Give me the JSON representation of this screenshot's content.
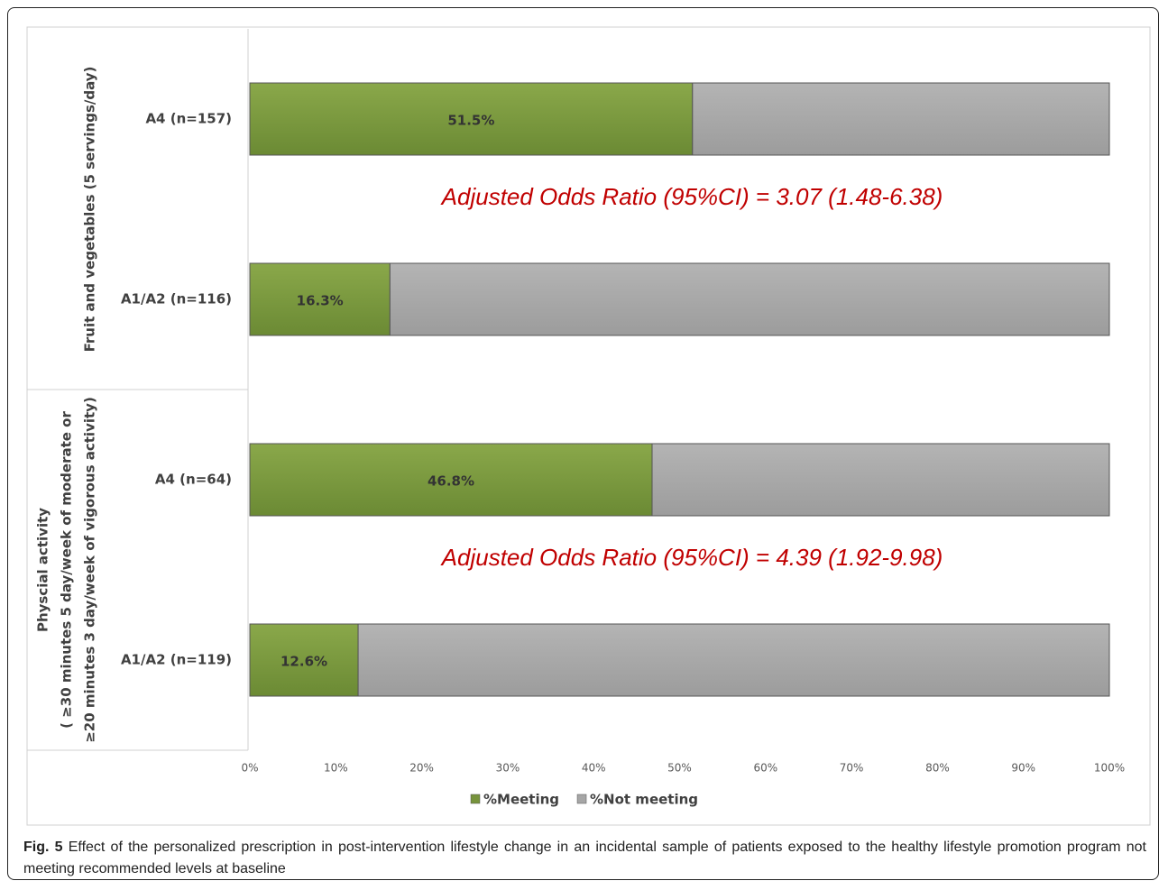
{
  "chart_data": {
    "type": "bar",
    "orientation": "horizontal",
    "stacked": true,
    "groups": [
      {
        "label": [
          "Fruit and vegetables (5 servings/day)"
        ],
        "categories": [
          "A4 (n=157)",
          "A1/A2 (n=116)"
        ],
        "annotation": "Adjusted Odds Ratio (95%CI) = 3.07 (1.48-6.38)"
      },
      {
        "label": [
          "Physcial activity",
          "( ≥30 minutes 5 day/week of moderate or",
          "≥20 minutes 3 day/week of vigorous activity)"
        ],
        "categories": [
          "A4 (n=64)",
          "A1/A2 (n=119)"
        ],
        "annotation": "Adjusted Odds Ratio (95%CI) = 4.39 (1.92-9.98)"
      }
    ],
    "series": [
      {
        "name": "%Meeting",
        "color": "#77933c",
        "values": [
          51.5,
          16.3,
          46.8,
          12.6
        ],
        "value_labels": [
          "51.5%",
          "16.3%",
          "46.8%",
          "12.6%"
        ]
      },
      {
        "name": "%Not meeting",
        "color": "#a6a6a6",
        "values": [
          48.5,
          83.7,
          53.2,
          87.4
        ]
      }
    ],
    "xlim": [
      0,
      100
    ],
    "xticks": [
      {
        "value": 0,
        "label": "0%"
      },
      {
        "value": 10,
        "label": "10%"
      },
      {
        "value": 20,
        "label": "20%"
      },
      {
        "value": 30,
        "label": "30%"
      },
      {
        "value": 40,
        "label": "40%"
      },
      {
        "value": 50,
        "label": "50%"
      },
      {
        "value": 60,
        "label": "60%"
      },
      {
        "value": 70,
        "label": "70%"
      },
      {
        "value": 80,
        "label": "80%"
      },
      {
        "value": 90,
        "label": "90%"
      },
      {
        "value": 100,
        "label": "100%"
      }
    ],
    "grid": false,
    "legend": "bottom"
  },
  "caption": {
    "label": "Fig. 5",
    "text": "Effect of the personalized prescription in post-intervention lifestyle change in an incidental sample of patients exposed to the healthy lifestyle promotion program not meeting recommended levels at baseline"
  }
}
